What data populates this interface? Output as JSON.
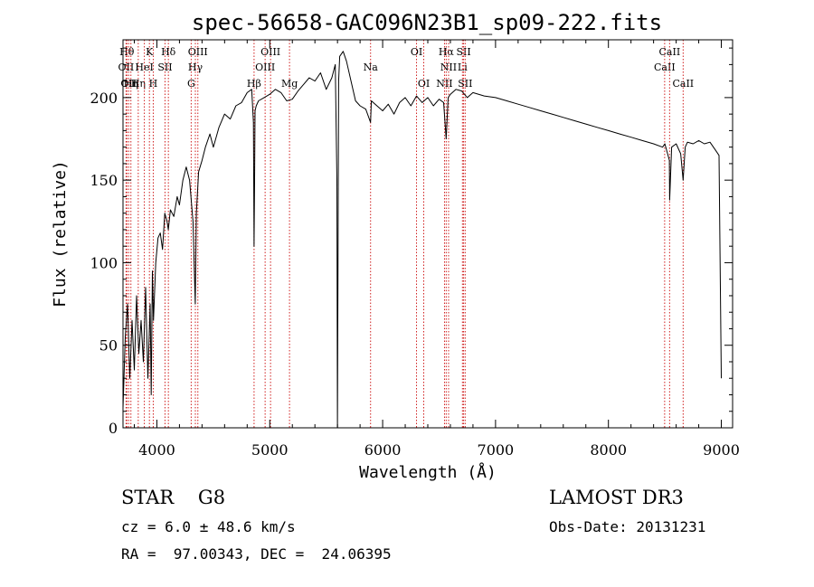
{
  "chart_data": {
    "type": "line",
    "title": "spec-56658-GAC096N23B1_sp09-222.fits",
    "xlabel": "Wavelength (Å)",
    "ylabel": "Flux (relative)",
    "xlim": [
      3700,
      9100
    ],
    "ylim": [
      0,
      235
    ],
    "xticks": [
      4000,
      5000,
      6000,
      7000,
      8000,
      9000
    ],
    "yticks": [
      0,
      50,
      100,
      150,
      200
    ],
    "xtick_labels": [
      "4000",
      "5000",
      "6000",
      "7000",
      "8000",
      "9000"
    ],
    "ytick_labels": [
      "0",
      "50",
      "100",
      "150",
      "200"
    ],
    "series": [
      {
        "name": "spectrum",
        "x": [
          3700,
          3720,
          3740,
          3760,
          3780,
          3800,
          3820,
          3840,
          3860,
          3880,
          3900,
          3920,
          3940,
          3950,
          3960,
          3970,
          3990,
          4010,
          4030,
          4050,
          4070,
          4090,
          4101,
          4120,
          4150,
          4180,
          4200,
          4230,
          4260,
          4290,
          4320,
          4340,
          4350,
          4370,
          4400,
          4430,
          4470,
          4500,
          4550,
          4600,
          4650,
          4700,
          4750,
          4800,
          4840,
          4855,
          4861,
          4866,
          4870,
          4880,
          4900,
          4950,
          5000,
          5050,
          5100,
          5150,
          5200,
          5250,
          5300,
          5350,
          5400,
          5450,
          5500,
          5550,
          5580,
          5595,
          5600,
          5610,
          5620,
          5650,
          5680,
          5720,
          5760,
          5800,
          5850,
          5893,
          5900,
          5950,
          6000,
          6050,
          6100,
          6150,
          6200,
          6250,
          6300,
          6350,
          6400,
          6450,
          6500,
          6540,
          6563,
          6580,
          6600,
          6650,
          6700,
          6750,
          6800,
          6900,
          7000,
          7100,
          7200,
          7300,
          7400,
          7500,
          7600,
          7700,
          7800,
          7900,
          8000,
          8100,
          8200,
          8300,
          8400,
          8480,
          8500,
          8540,
          8542,
          8560,
          8600,
          8640,
          8662,
          8680,
          8700,
          8750,
          8800,
          8850,
          8900,
          8950,
          8980,
          9000
        ],
        "y": [
          12,
          55,
          75,
          30,
          65,
          35,
          80,
          45,
          65,
          40,
          85,
          30,
          75,
          20,
          95,
          65,
          100,
          115,
          118,
          108,
          130,
          125,
          120,
          132,
          128,
          140,
          135,
          150,
          158,
          150,
          125,
          75,
          130,
          155,
          162,
          170,
          178,
          170,
          182,
          190,
          187,
          195,
          197,
          203,
          205,
          185,
          110,
          150,
          192,
          195,
          198,
          200,
          202,
          205,
          203,
          198,
          199,
          204,
          208,
          212,
          210,
          215,
          205,
          212,
          220,
          150,
          0,
          210,
          225,
          228,
          222,
          210,
          198,
          195,
          193,
          185,
          198,
          195,
          192,
          196,
          190,
          197,
          200,
          195,
          201,
          197,
          200,
          195,
          199,
          197,
          175,
          200,
          202,
          205,
          204,
          200,
          203,
          201,
          200,
          198,
          196,
          194,
          192,
          190,
          188,
          186,
          184,
          182,
          180,
          178,
          176,
          174,
          172,
          170,
          172,
          162,
          138,
          170,
          172,
          166,
          150,
          170,
          173,
          172,
          174,
          172,
          173,
          168,
          165,
          30
        ]
      }
    ],
    "lines": [
      {
        "wl": 3734,
        "label": "Hθ",
        "row": 1
      },
      {
        "wl": 3727,
        "label": "OII",
        "row": 2
      },
      {
        "wl": 3750,
        "label": "OII",
        "row": 3
      },
      {
        "wl": 3770,
        "label": "Hη",
        "row": 3
      },
      {
        "wl": 3835,
        "label": "Hη",
        "row": 3
      },
      {
        "wl": 3889,
        "label": "HeI",
        "row": 2
      },
      {
        "wl": 3934,
        "label": "K",
        "row": 1
      },
      {
        "wl": 3968,
        "label": "H",
        "row": 3
      },
      {
        "wl": 4072,
        "label": "SII",
        "row": 2
      },
      {
        "wl": 4102,
        "label": "Hδ",
        "row": 1
      },
      {
        "wl": 4304,
        "label": "G",
        "row": 3
      },
      {
        "wl": 4341,
        "label": "Hγ",
        "row": 2
      },
      {
        "wl": 4363,
        "label": "OIII",
        "row": 1
      },
      {
        "wl": 4861,
        "label": "Hβ",
        "row": 3
      },
      {
        "wl": 4959,
        "label": "OIII",
        "row": 2
      },
      {
        "wl": 5007,
        "label": "OIII",
        "row": 1
      },
      {
        "wl": 5175,
        "label": "Mg",
        "row": 3
      },
      {
        "wl": 5893,
        "label": "Na",
        "row": 2
      },
      {
        "wl": 6300,
        "label": "OI",
        "row": 1
      },
      {
        "wl": 6364,
        "label": "OI",
        "row": 3
      },
      {
        "wl": 6548,
        "label": "NII",
        "row": 3
      },
      {
        "wl": 6563,
        "label": "Hα",
        "row": 1
      },
      {
        "wl": 6584,
        "label": "NII",
        "row": 2
      },
      {
        "wl": 6707,
        "label": "Li",
        "row": 2
      },
      {
        "wl": 6717,
        "label": "SII",
        "row": 1
      },
      {
        "wl": 6731,
        "label": "SII",
        "row": 3
      },
      {
        "wl": 8498,
        "label": "CaII",
        "row": 2
      },
      {
        "wl": 8542,
        "label": "CaII",
        "row": 1
      },
      {
        "wl": 8662,
        "label": "CaII",
        "row": 3
      }
    ]
  },
  "info": {
    "class_label": "STAR    G8",
    "survey_label": "LAMOST DR3",
    "cz_label": "cz = 6.0 ± 48.6 km/s",
    "obs_label": "Obs-Date: 20131231",
    "coords_label": "RA =  97.00343, DEC =  24.06395"
  }
}
